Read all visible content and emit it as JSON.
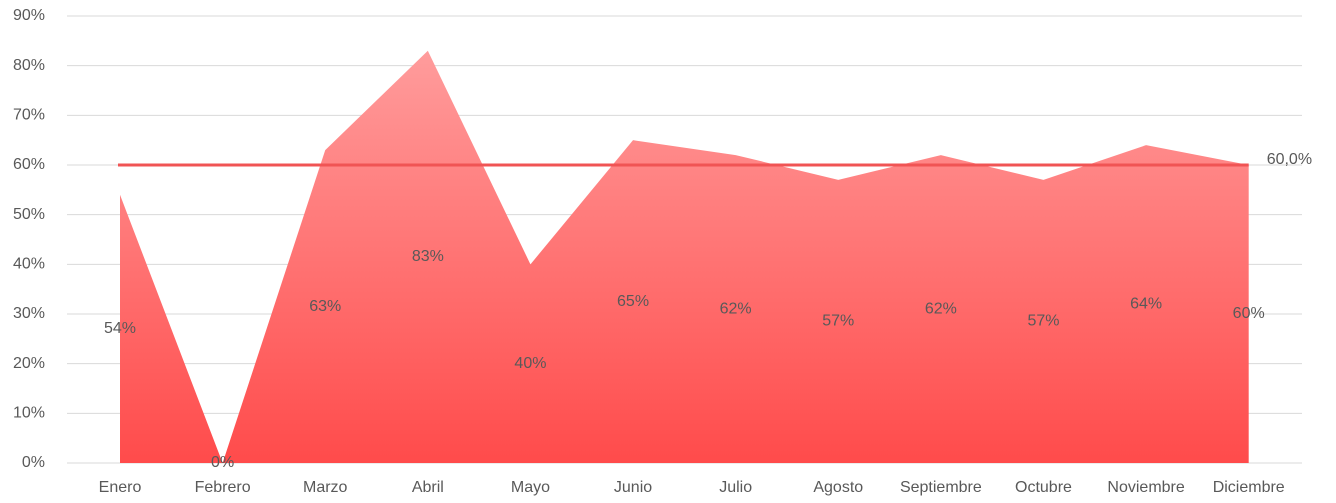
{
  "chart_data": {
    "type": "area",
    "categories": [
      "Enero",
      "Febrero",
      "Marzo",
      "Abril",
      "Mayo",
      "Junio",
      "Julio",
      "Agosto",
      "Septiembre",
      "Octubre",
      "Noviembre",
      "Diciembre"
    ],
    "values": [
      54,
      0,
      63,
      83,
      40,
      65,
      62,
      57,
      62,
      57,
      64,
      60
    ],
    "value_labels": [
      "54%",
      "0%",
      "63%",
      "83%",
      "40%",
      "65%",
      "62%",
      "57%",
      "62%",
      "57%",
      "64%",
      "60%"
    ],
    "color": [
      "#ff9c9c",
      "#ff4b4b"
    ],
    "target": {
      "value": 60,
      "label": "60,0%",
      "color": "#f05454"
    },
    "ylim": [
      0,
      90
    ],
    "yticks": [
      {
        "value": 0,
        "label": "0%"
      },
      {
        "value": 10,
        "label": "10%"
      },
      {
        "value": 20,
        "label": "20%"
      },
      {
        "value": 30,
        "label": "30%"
      },
      {
        "value": 40,
        "label": "40%"
      },
      {
        "value": 50,
        "label": "50%"
      },
      {
        "value": 60,
        "label": "60%"
      },
      {
        "value": 70,
        "label": "70%"
      },
      {
        "value": 80,
        "label": "80%"
      },
      {
        "value": 90,
        "label": "90%"
      }
    ],
    "grid": true
  }
}
